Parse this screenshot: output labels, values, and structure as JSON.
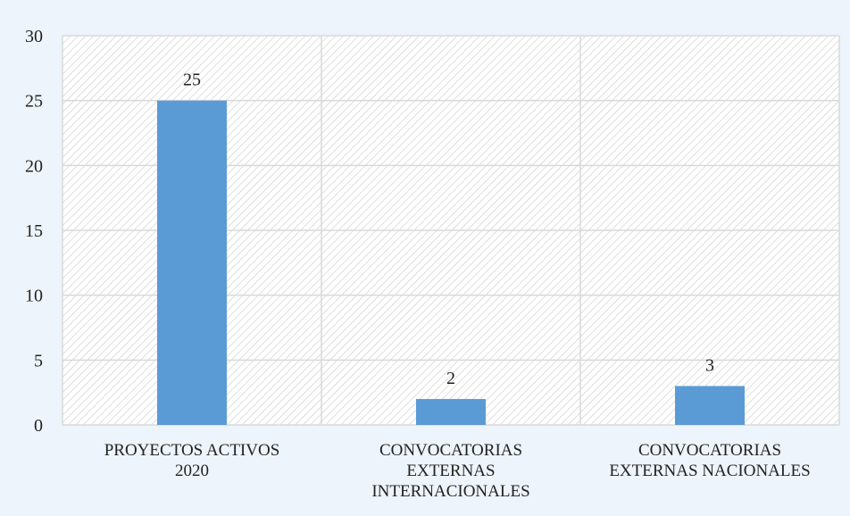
{
  "chart_data": {
    "type": "bar",
    "title": "",
    "xlabel": "",
    "ylabel": "",
    "categories": [
      [
        "PROYECTOS ACTIVOS",
        "2020"
      ],
      [
        "CONVOCATORIAS",
        "EXTERNAS",
        "INTERNACIONALES"
      ],
      [
        "CONVOCATORIAS",
        "EXTERNAS NACIONALES"
      ]
    ],
    "values": [
      25,
      2,
      3
    ],
    "data_labels": [
      "25",
      "2",
      "3"
    ],
    "ylim": [
      0,
      30
    ],
    "yticks": [
      0,
      5,
      10,
      15,
      20,
      25,
      30
    ],
    "grid": true,
    "vertical_gridlines": true,
    "legend": "none",
    "colors": {
      "bar": "#5b9bd5",
      "grid": "#d9d9d9",
      "plot_background_pattern": "diagonal-hatch",
      "hatch": "#d0d0d0",
      "page_background": "#eef4fb"
    }
  }
}
